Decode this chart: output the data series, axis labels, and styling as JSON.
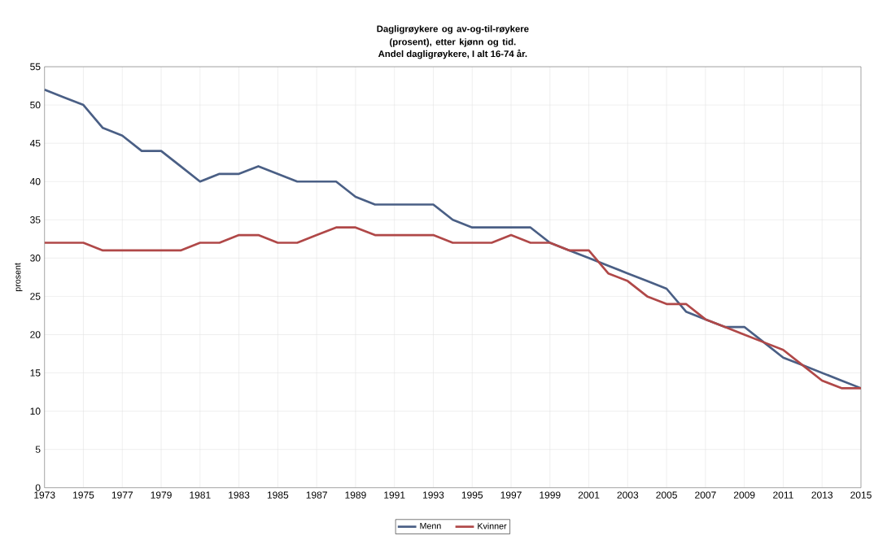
{
  "chart_data": {
    "type": "line",
    "title": "Dagligrøykere og av-og-til-røykere (prosent), etter kjønn og tid.",
    "subtitle": "Andel dagligrøykere, I alt 16-74 år.",
    "ylabel": "prosent",
    "x": [
      1973,
      1974,
      1975,
      1976,
      1977,
      1978,
      1979,
      1980,
      1981,
      1982,
      1983,
      1984,
      1985,
      1986,
      1987,
      1988,
      1989,
      1990,
      1991,
      1992,
      1993,
      1994,
      1995,
      1996,
      1997,
      1998,
      1999,
      2000,
      2001,
      2002,
      2003,
      2004,
      2005,
      2006,
      2007,
      2008,
      2009,
      2010,
      2011,
      2012,
      2013,
      2014,
      2015
    ],
    "series": [
      {
        "name": "Menn",
        "color": "#4a5f85",
        "values": [
          52,
          51,
          50,
          47,
          46,
          44,
          44,
          42,
          40,
          41,
          41,
          42,
          41,
          40,
          40,
          40,
          38,
          37,
          37,
          37,
          37,
          35,
          34,
          34,
          34,
          34,
          32,
          31,
          30,
          29,
          28,
          27,
          26,
          23,
          22,
          21,
          21,
          19,
          17,
          16,
          15,
          14,
          13
        ]
      },
      {
        "name": "Kvinner",
        "color": "#b04848",
        "values": [
          32,
          32,
          32,
          31,
          31,
          31,
          31,
          31,
          32,
          32,
          33,
          33,
          32,
          32,
          33,
          34,
          34,
          33,
          33,
          33,
          33,
          32,
          32,
          32,
          33,
          32,
          32,
          31,
          31,
          28,
          27,
          25,
          24,
          24,
          22,
          21,
          20,
          19,
          18,
          16,
          14,
          13,
          13
        ]
      }
    ],
    "xlim": [
      1973,
      2015
    ],
    "xticks": [
      1973,
      1975,
      1977,
      1979,
      1981,
      1983,
      1985,
      1987,
      1989,
      1991,
      1993,
      1995,
      1997,
      1999,
      2001,
      2003,
      2005,
      2007,
      2009,
      2011,
      2013,
      2015
    ],
    "ylim": [
      0,
      55
    ],
    "yticks": [
      0,
      5,
      10,
      15,
      20,
      25,
      30,
      35,
      40,
      45,
      50,
      55
    ],
    "grid": true,
    "legend": "bottom",
    "marker": "none",
    "line_style": "solid"
  }
}
